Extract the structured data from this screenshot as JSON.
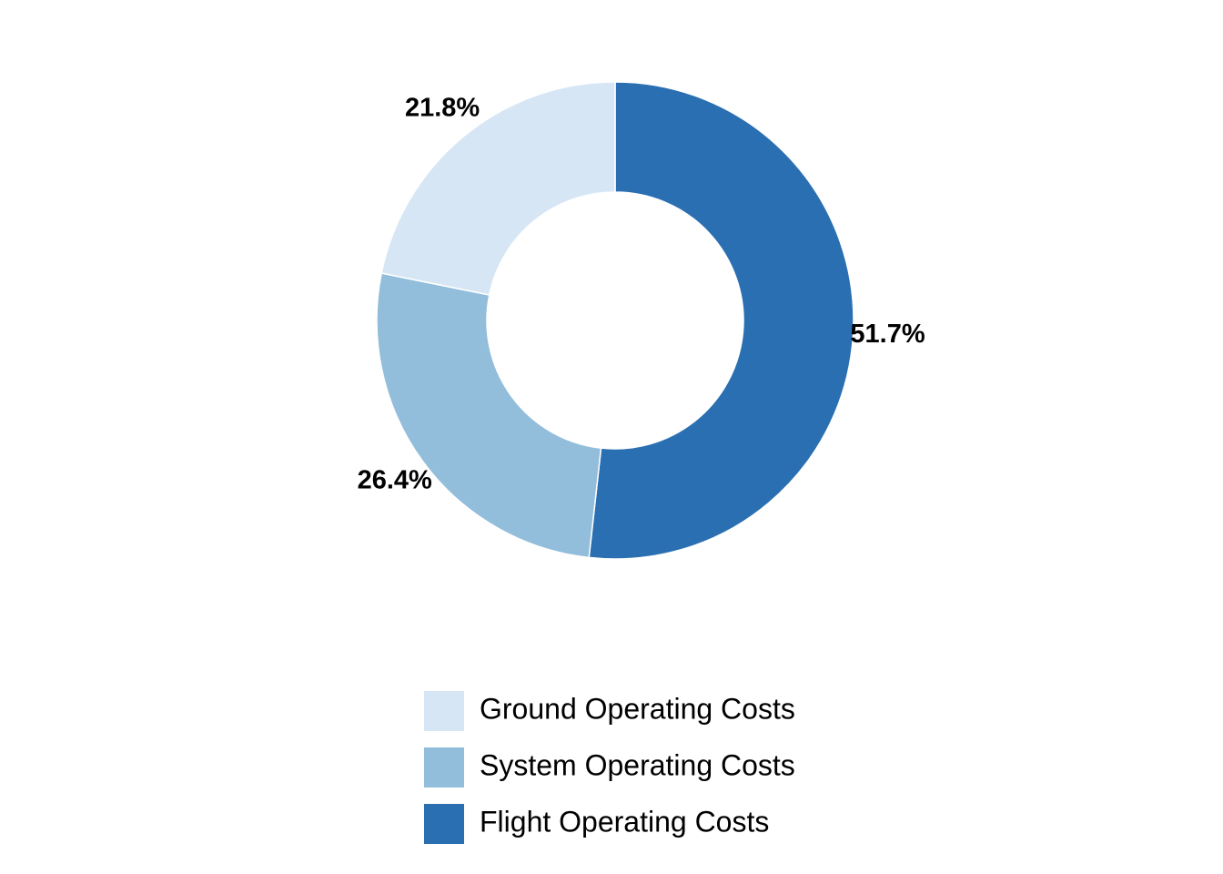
{
  "chart_data": {
    "type": "pie",
    "style": "donut",
    "title": "",
    "slices": [
      {
        "name": "Flight Operating Costs",
        "value": 51.7,
        "label": "51.7%",
        "color": "#2a6fb2"
      },
      {
        "name": "System Operating Costs",
        "value": 26.4,
        "label": "26.4%",
        "color": "#92bedb"
      },
      {
        "name": "Ground Operating Costs",
        "value": 21.8,
        "label": "21.8%",
        "color": "#d6e6f4"
      }
    ],
    "legend": {
      "placement": "bottom",
      "entries": [
        "Ground Operating Costs",
        "System Operating Costs",
        "Flight Operating Costs"
      ]
    }
  }
}
